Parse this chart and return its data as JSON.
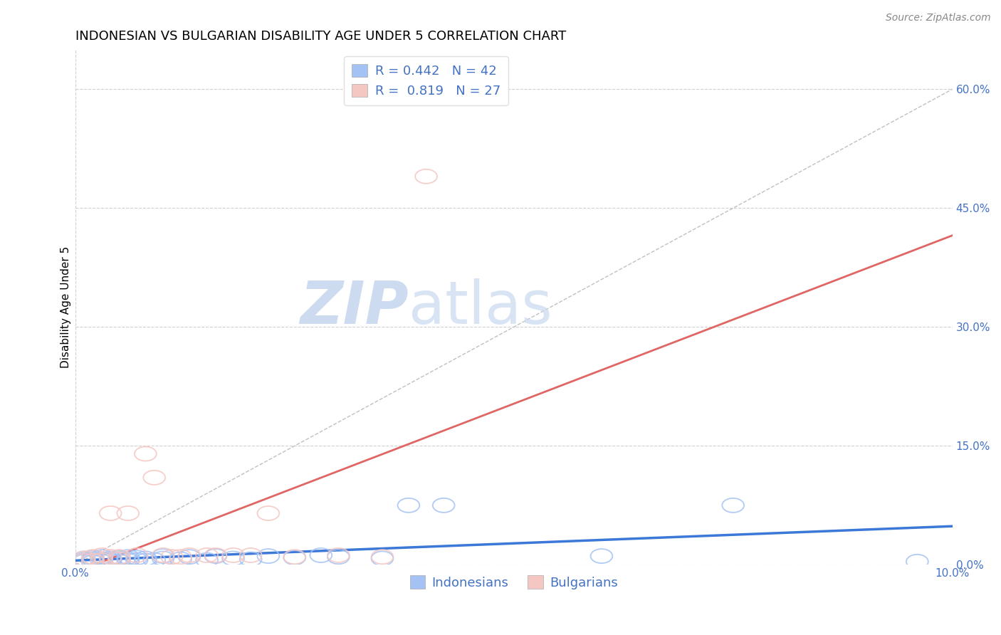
{
  "title": "INDONESIAN VS BULGARIAN DISABILITY AGE UNDER 5 CORRELATION CHART",
  "source": "Source: ZipAtlas.com",
  "ylabel": "Disability Age Under 5",
  "xlim": [
    0.0,
    0.1
  ],
  "ylim": [
    0.0,
    0.65
  ],
  "xticks": [
    0.0,
    0.1
  ],
  "xtick_labels": [
    "0.0%",
    "10.0%"
  ],
  "yticks_right": [
    0.0,
    0.15,
    0.3,
    0.45,
    0.6
  ],
  "ytick_labels_right": [
    "0.0%",
    "15.0%",
    "30.0%",
    "45.0%",
    "60.0%"
  ],
  "blue_color": "#a4c2f4",
  "pink_color": "#f4c7c3",
  "blue_line_color": "#3c78d8",
  "pink_line_color": "#e06666",
  "ref_line_color": "#c0c0c0",
  "grid_color": "#d0d0d0",
  "R_blue": 0.442,
  "N_blue": 42,
  "R_pink": 0.819,
  "N_pink": 27,
  "indo_x": [
    0.001,
    0.001,
    0.001,
    0.002,
    0.002,
    0.002,
    0.002,
    0.003,
    0.003,
    0.003,
    0.004,
    0.004,
    0.004,
    0.005,
    0.005,
    0.005,
    0.006,
    0.006,
    0.006,
    0.007,
    0.007,
    0.008,
    0.008,
    0.009,
    0.01,
    0.01,
    0.012,
    0.013,
    0.015,
    0.016,
    0.018,
    0.02,
    0.022,
    0.025,
    0.028,
    0.03,
    0.035,
    0.038,
    0.042,
    0.06,
    0.075,
    0.096
  ],
  "indo_y": [
    0.006,
    0.004,
    0.008,
    0.005,
    0.007,
    0.003,
    0.009,
    0.004,
    0.007,
    0.01,
    0.005,
    0.008,
    0.006,
    0.004,
    0.009,
    0.007,
    0.005,
    0.01,
    0.007,
    0.006,
    0.009,
    0.005,
    0.008,
    0.006,
    0.008,
    0.011,
    0.007,
    0.01,
    0.006,
    0.011,
    0.008,
    0.007,
    0.011,
    0.009,
    0.012,
    0.01,
    0.008,
    0.075,
    0.075,
    0.011,
    0.075,
    0.004
  ],
  "bulg_x": [
    0.001,
    0.001,
    0.002,
    0.002,
    0.003,
    0.003,
    0.004,
    0.004,
    0.005,
    0.005,
    0.006,
    0.007,
    0.008,
    0.009,
    0.01,
    0.011,
    0.012,
    0.013,
    0.015,
    0.016,
    0.018,
    0.02,
    0.022,
    0.025,
    0.03,
    0.035,
    0.04
  ],
  "bulg_y": [
    0.005,
    0.008,
    0.005,
    0.01,
    0.006,
    0.012,
    0.01,
    0.065,
    0.007,
    0.01,
    0.065,
    0.012,
    0.14,
    0.11,
    0.012,
    0.01,
    0.01,
    0.012,
    0.012,
    0.012,
    0.012,
    0.012,
    0.065,
    0.01,
    0.012,
    0.01,
    0.49
  ],
  "watermark_zip": "ZIP",
  "watermark_atlas": "atlas",
  "watermark_color": "#c8d8f0",
  "title_fontsize": 13,
  "axis_label_fontsize": 11,
  "tick_fontsize": 11,
  "legend_fontsize": 13,
  "source_fontsize": 10
}
